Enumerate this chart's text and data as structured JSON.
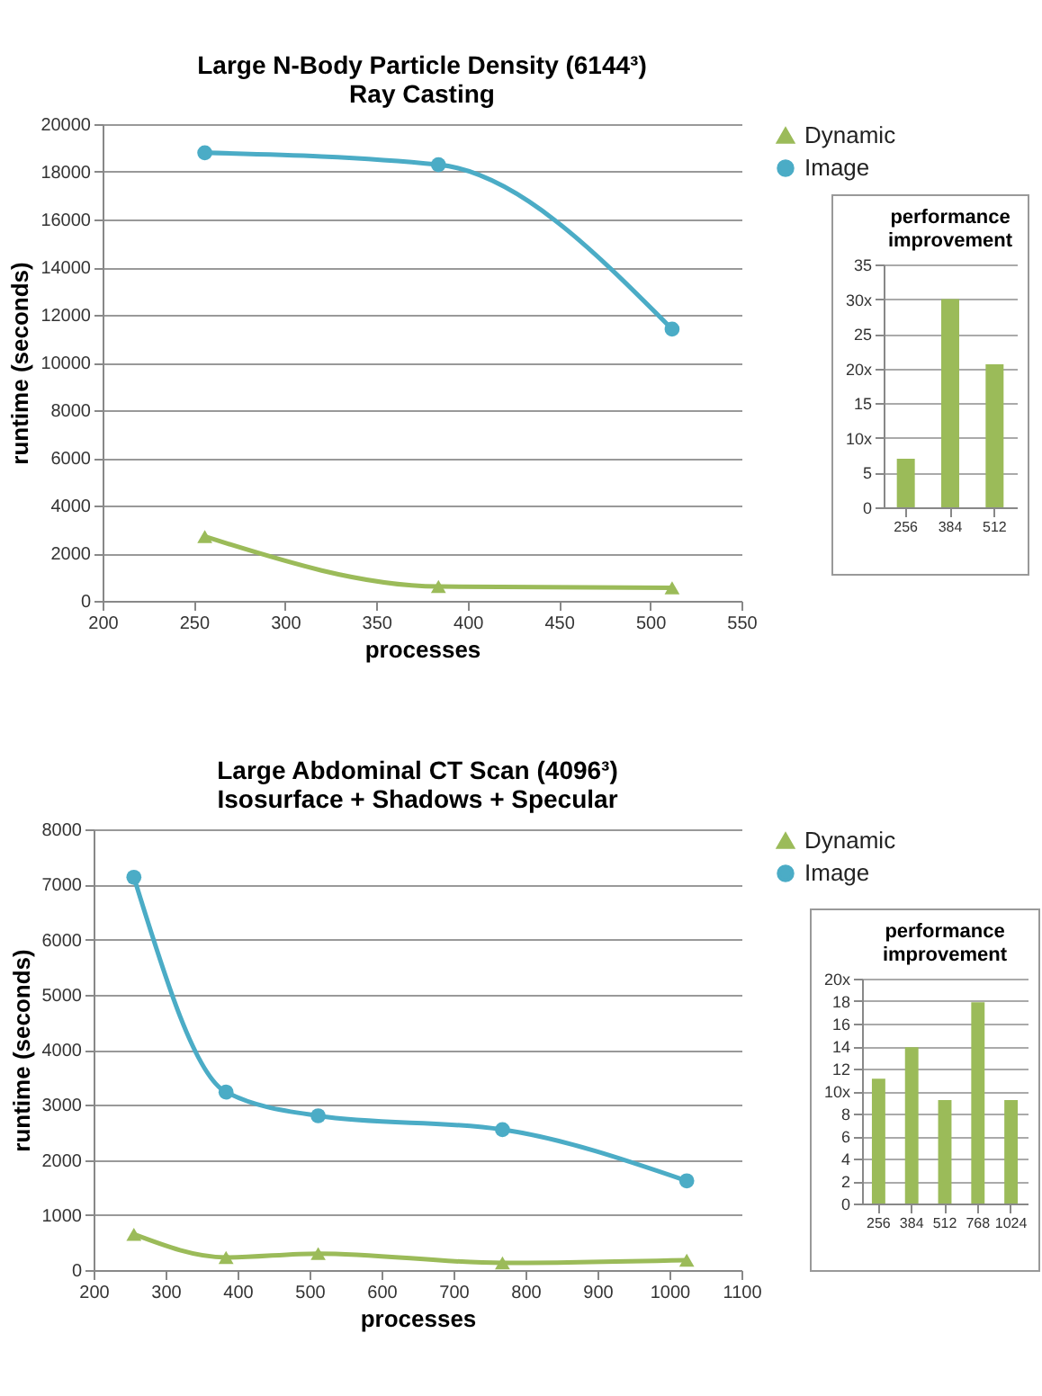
{
  "chart_data": [
    {
      "type": "line",
      "title": "Large N-Body Particle Density (6144³)",
      "subtitle": "Ray Casting",
      "xlabel": "processes",
      "ylabel": "runtime (seconds)",
      "xlim": [
        200,
        550
      ],
      "xticks": [
        200,
        250,
        300,
        350,
        400,
        450,
        500,
        550
      ],
      "ylim": [
        0,
        20000
      ],
      "yticks": [
        0,
        2000,
        4000,
        6000,
        8000,
        10000,
        12000,
        14000,
        16000,
        18000,
        20000
      ],
      "grid": "y",
      "legend": "top right",
      "x": [
        256,
        384,
        512
      ],
      "series": [
        {
          "name": "Dynamic",
          "color": "#9bbb59",
          "marker": "triangle",
          "values": [
            2700,
            600,
            550
          ]
        },
        {
          "name": "Image",
          "color": "#4bacc6",
          "marker": "circle",
          "values": [
            18800,
            18300,
            11400
          ]
        }
      ]
    },
    {
      "type": "bar",
      "title": "performance improvement",
      "categories": [
        "256",
        "384",
        "512"
      ],
      "values": [
        7,
        30,
        20.6
      ],
      "color": "#9bbb59",
      "ylim": [
        0,
        35
      ],
      "yticks": [
        0,
        5,
        {
          "value": 10,
          "label": "10x"
        },
        15,
        {
          "value": 20,
          "label": "20x"
        },
        25,
        {
          "value": 30,
          "label": "30x"
        },
        35
      ],
      "grid": "y"
    },
    {
      "type": "line",
      "title": "Large Abdominal CT Scan (4096³)",
      "subtitle": "Isosurface + Shadows + Specular",
      "xlabel": "processes",
      "ylabel": "runtime (seconds)",
      "xlim": [
        200,
        1100
      ],
      "xticks": [
        200,
        300,
        400,
        500,
        600,
        700,
        800,
        900,
        1000,
        1100
      ],
      "ylim": [
        0,
        8000
      ],
      "yticks": [
        0,
        1000,
        2000,
        3000,
        4000,
        5000,
        6000,
        7000,
        8000
      ],
      "grid": "y",
      "legend": "top right",
      "x": [
        256,
        384,
        512,
        768,
        1024
      ],
      "series": [
        {
          "name": "Dynamic",
          "color": "#9bbb59",
          "marker": "triangle",
          "values": [
            650,
            230,
            300,
            130,
            180
          ]
        },
        {
          "name": "Image",
          "color": "#4bacc6",
          "marker": "circle",
          "values": [
            7130,
            3230,
            2800,
            2550,
            1620
          ]
        }
      ]
    },
    {
      "type": "bar",
      "title": "performance improvement",
      "categories": [
        "256",
        "384",
        "512",
        "768",
        "1024"
      ],
      "values": [
        11.1,
        13.9,
        9.2,
        17.9,
        9.2
      ],
      "color": "#9bbb59",
      "ylim": [
        0,
        20
      ],
      "yticks": [
        0,
        2,
        4,
        6,
        8,
        {
          "value": 10,
          "label": "10x"
        },
        12,
        14,
        16,
        18,
        {
          "value": 20,
          "label": "20x"
        }
      ],
      "grid": "y"
    }
  ]
}
